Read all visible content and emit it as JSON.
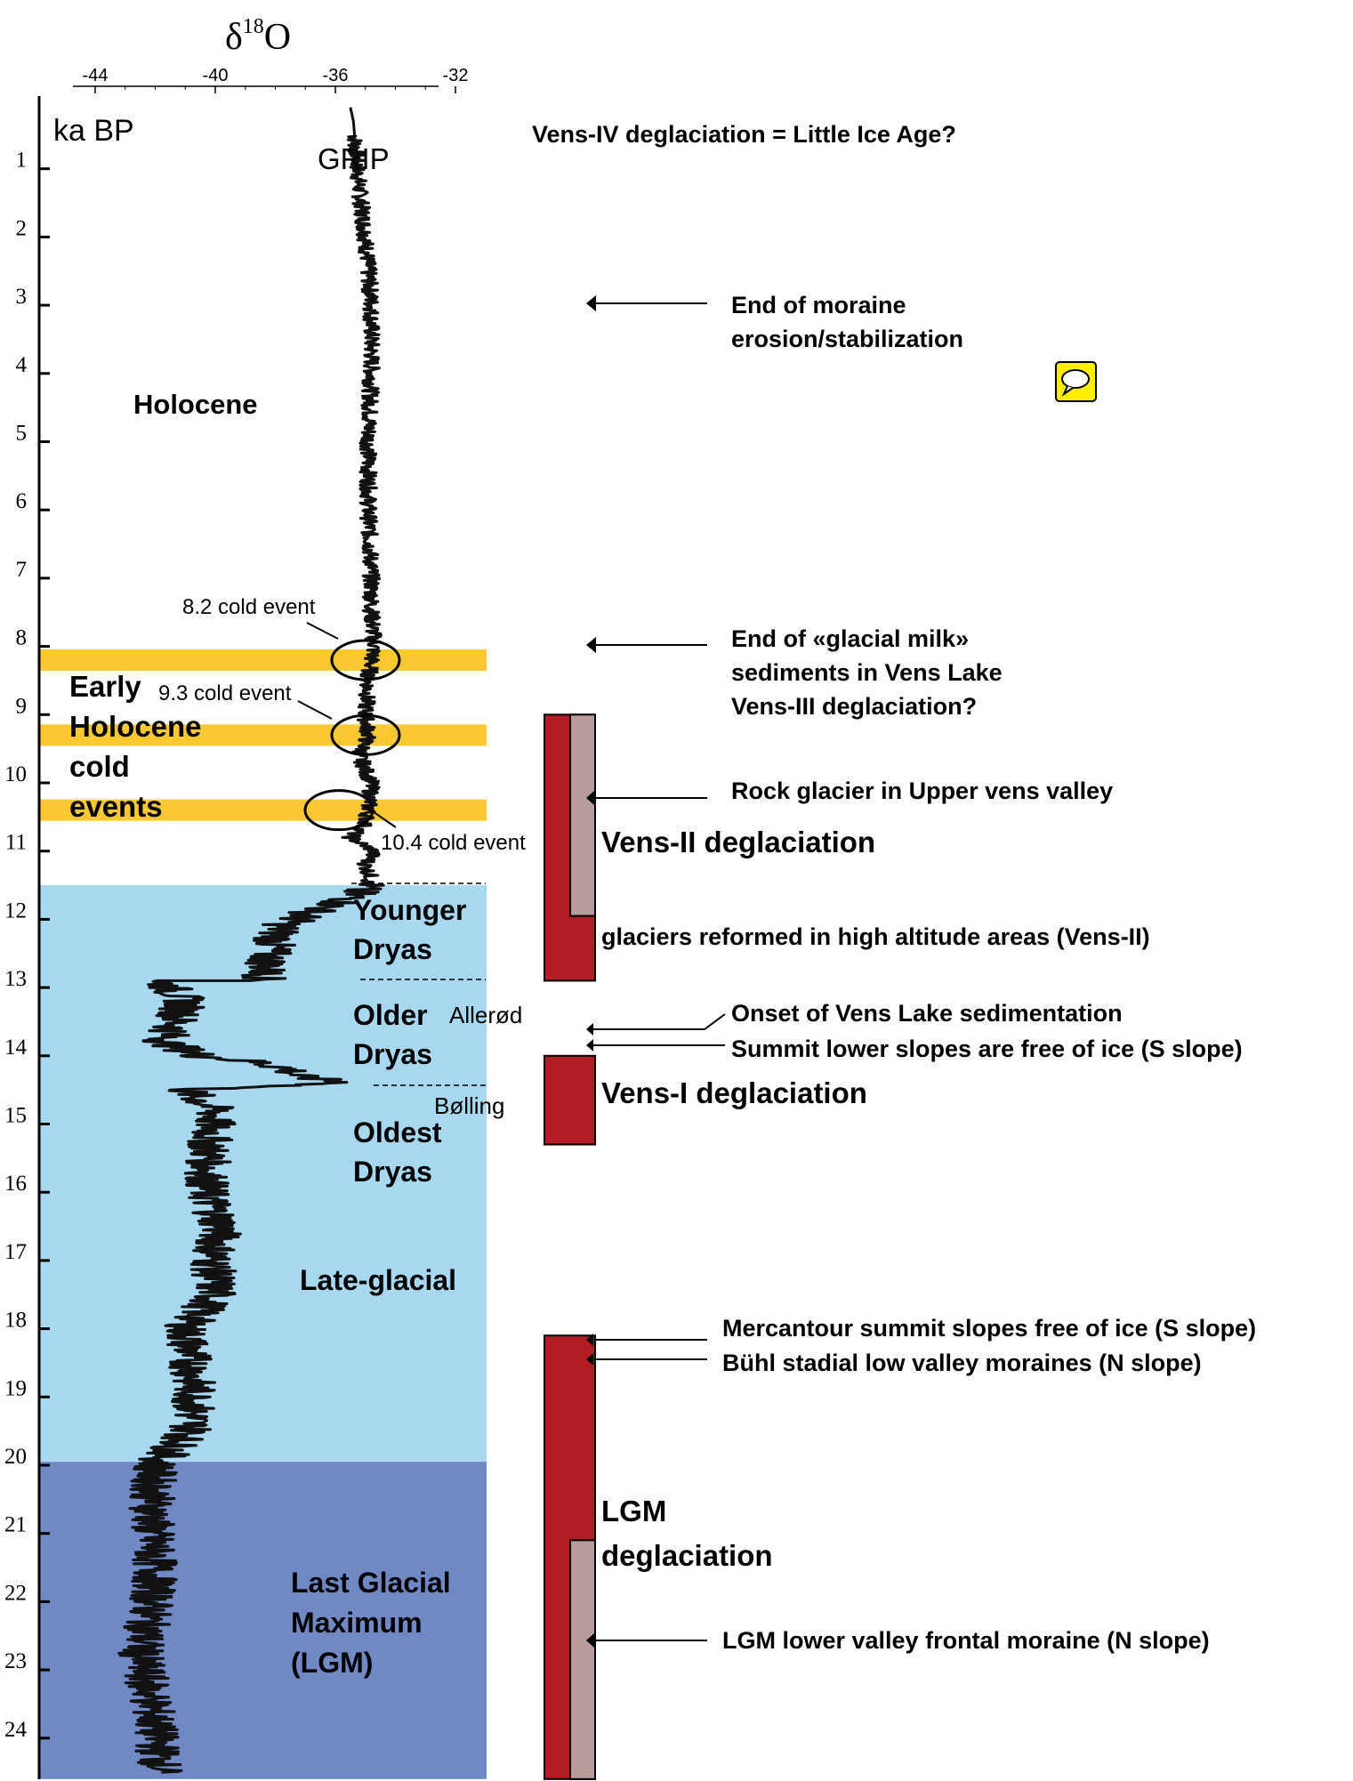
{
  "chart_data": {
    "type": "line",
    "title": "",
    "xlabel": "δ18O",
    "xlabel_parts": {
      "delta": "δ",
      "sup": "18",
      "letter": "O"
    },
    "ylabel": "ka BP",
    "series_label": "GRIP",
    "xlim": [
      -44,
      -32
    ],
    "ylim": [
      0,
      24.6
    ],
    "x_ticks": [
      {
        "v": -44,
        "label": "-44"
      },
      {
        "v": -40,
        "label": "-40"
      },
      {
        "v": -36,
        "label": "-36"
      },
      {
        "v": -32,
        "label": "-32"
      }
    ],
    "y_ticks": [
      "1",
      "2",
      "3",
      "4",
      "5",
      "6",
      "7",
      "8",
      "9",
      "10",
      "11",
      "12",
      "13",
      "14",
      "15",
      "16",
      "17",
      "18",
      "19",
      "20",
      "21",
      "22",
      "23",
      "24"
    ],
    "grid": false,
    "series": [
      {
        "name": "GRIP",
        "x": [
          -35.5,
          -35.4,
          -35.2,
          -35.0,
          -34.8,
          -34.8,
          -34.9,
          -34.9,
          -34.8,
          -34.8,
          -34.7,
          -34.8,
          -34.9,
          -35.0,
          -34.9,
          -35.2,
          -34.8,
          -34.9,
          -35.0,
          -35.5,
          -34.7,
          -35.0,
          -34.8,
          -35.3,
          -35.5,
          -36.8,
          -37.8,
          -38.2,
          -38.4,
          -41.8,
          -41.0,
          -41.3,
          -41.7,
          -40.5,
          -38.5,
          -37.5,
          -37.3,
          -35.6,
          -41.0,
          -40.0,
          -40.2,
          -40.3,
          -39.8,
          -40.1,
          -40.0,
          -41.0,
          -40.8,
          -40.7,
          -40.8,
          -42.0,
          -42.1,
          -42.1,
          -42.0,
          -42.1,
          -42.5,
          -42.1,
          -41.8
        ],
        "y": [
          0.1,
          0.3,
          1.3,
          2.0,
          3.0,
          4.0,
          5.0,
          6.0,
          7.0,
          7.5,
          8.0,
          8.2,
          8.5,
          9.0,
          9.3,
          9.6,
          10.0,
          10.4,
          10.6,
          10.8,
          11.0,
          11.2,
          11.4,
          11.6,
          11.7,
          11.9,
          12.1,
          12.5,
          12.9,
          12.9,
          13.2,
          13.5,
          13.8,
          14.0,
          14.1,
          14.2,
          14.3,
          14.4,
          14.5,
          14.8,
          15.3,
          16.0,
          16.5,
          17.0,
          17.5,
          18.0,
          18.5,
          19.0,
          19.5,
          20.0,
          20.5,
          21.0,
          21.5,
          22.0,
          22.8,
          23.5,
          24.5
        ]
      }
    ],
    "cold_events": [
      {
        "age": 8.2,
        "label": "8.2 cold event"
      },
      {
        "age": 9.3,
        "label": "9.3 cold event"
      },
      {
        "age": 10.4,
        "label": "10.4 cold event"
      }
    ],
    "zones": [
      {
        "from": 11.5,
        "to": 19.95,
        "color": "#a8d8f0"
      },
      {
        "from": 19.95,
        "to": 24.6,
        "color": "#7088c4"
      }
    ],
    "period_labels": [
      {
        "lines": [
          "Holocene"
        ]
      },
      {
        "lines": [
          "Early",
          "Holocene",
          "cold",
          "events"
        ]
      },
      {
        "lines": [
          "Younger",
          "Dryas"
        ]
      },
      {
        "lines": [
          "Older",
          "Dryas"
        ]
      },
      {
        "lines": [
          "Oldest",
          "Dryas"
        ]
      },
      {
        "lines": [
          "Late-glacial"
        ]
      },
      {
        "lines": [
          "Last Glacial",
          "Maximum",
          "(LGM)"
        ]
      }
    ],
    "interstadials": [
      "Allerød",
      "Bølling"
    ],
    "deglaciation_bars": [
      {
        "name": "Vens-II deglaciation",
        "red_from": 9.0,
        "red_to": 12.9,
        "grey_from": 9.0,
        "grey_to": 11.95
      },
      {
        "name": "Vens-I deglaciation",
        "red_from": 14.0,
        "red_to": 15.3
      },
      {
        "name": "LGM deglaciation",
        "lines": [
          "LGM",
          "deglaciation"
        ],
        "red_from": 18.1,
        "red_to": 24.6,
        "grey_from": 21.1,
        "grey_to": 24.6
      }
    ],
    "annotations": {
      "vens_iv": "Vens-IV deglaciation = Little Ice Age?",
      "moraine": [
        "End of moraine",
        "erosion/stabilization"
      ],
      "glacial_milk": [
        "End of «glacial milk»",
        "sediments in Vens Lake",
        "Vens-III deglaciation?"
      ],
      "rock_glacier": "Rock glacier in Upper vens valley",
      "reformed": "glaciers reformed in high altitude areas (Vens-II)",
      "onset": "Onset of Vens Lake sedimentation",
      "summit": "Summit lower slopes are free of ice (S slope)",
      "mercantour": "Mercantour summit slopes free of ice (S slope)",
      "buhl": "Bühl stadial low valley moraines (N slope)",
      "lgm_moraine": "LGM lower valley frontal moraine (N slope)"
    },
    "colors": {
      "cold_band": "#f8c21c",
      "bar_red": "#b21e23",
      "bar_grey": "#b79c9b",
      "line": "#111111",
      "comment_icon": "#ffee00"
    }
  }
}
